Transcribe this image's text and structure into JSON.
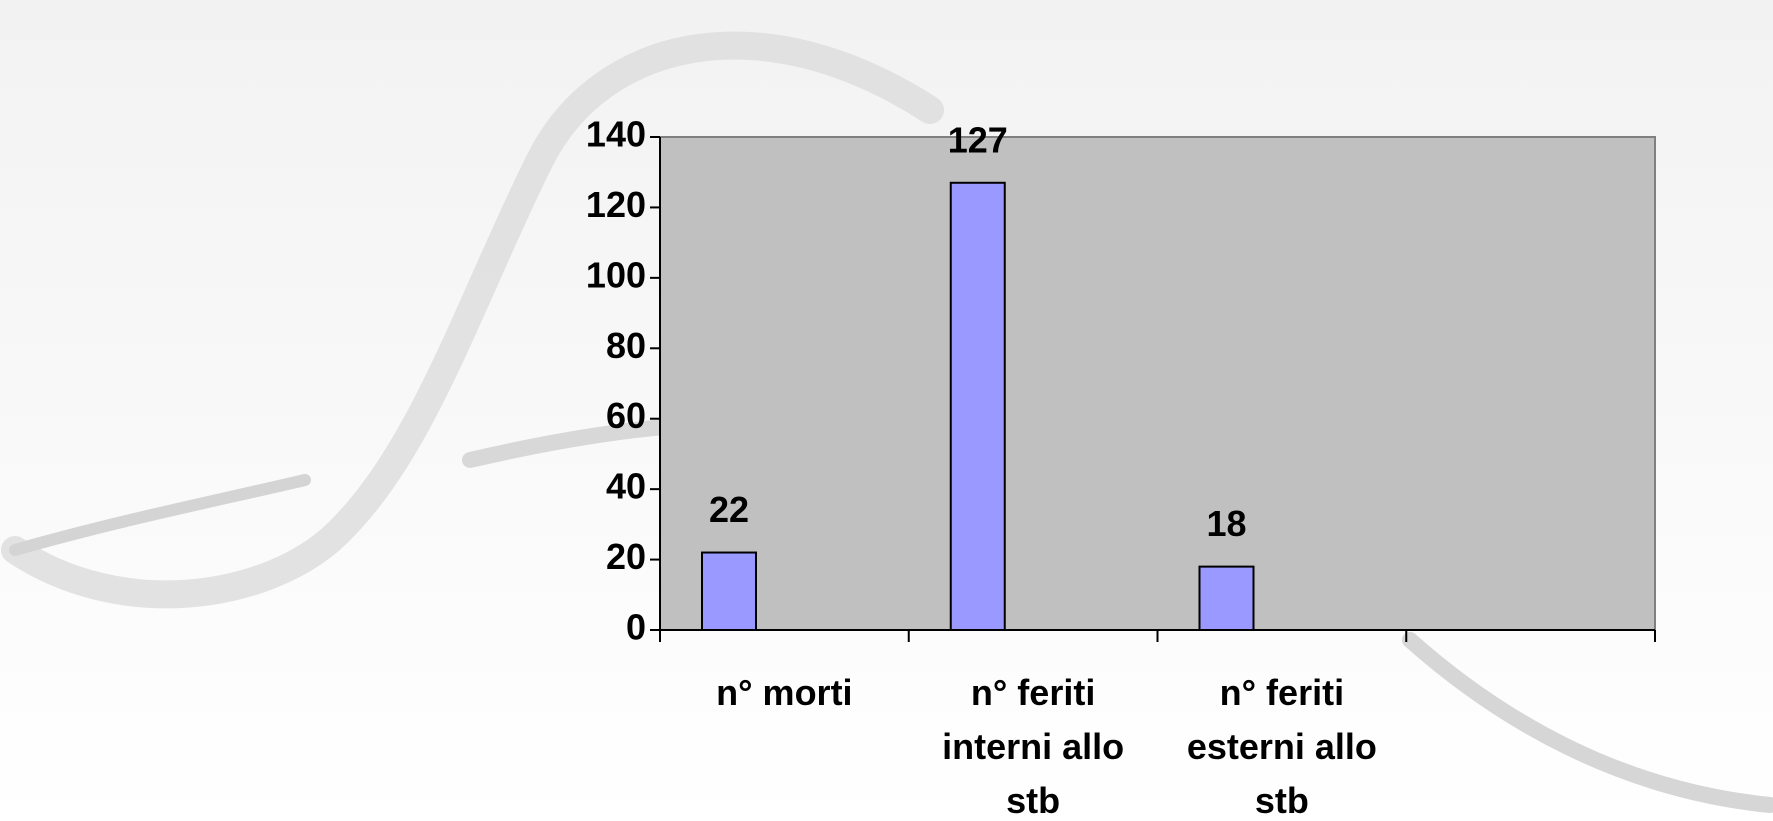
{
  "chart_data": {
    "type": "bar",
    "categories": [
      "n° morti",
      "n° feriti interni allo stb",
      "n° feriti esterni allo stb",
      null
    ],
    "values": [
      22,
      127,
      18,
      null
    ],
    "color": "#9999ff",
    "ylim": [
      0,
      140
    ],
    "yticks": [
      0,
      20,
      40,
      60,
      80,
      100,
      120,
      140
    ]
  }
}
